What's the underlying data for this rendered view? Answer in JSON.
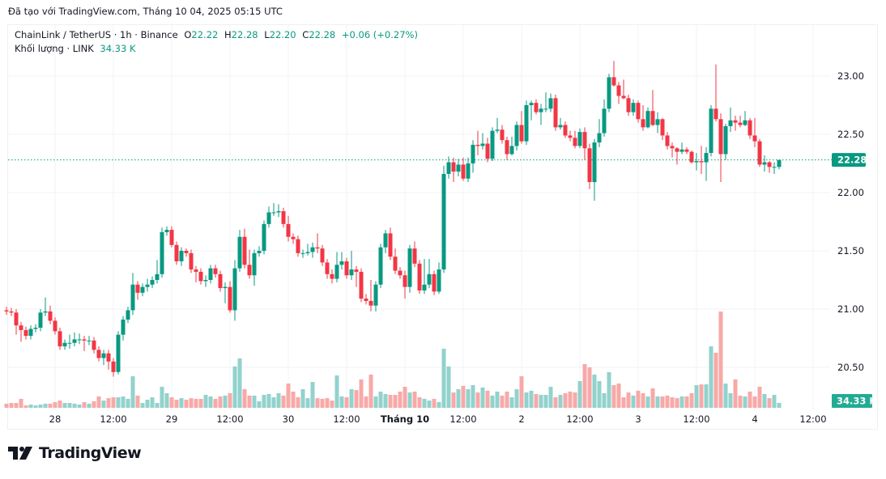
{
  "credit": "Đã tạo với TradingView.com, Tháng 10 04, 2025 05:15 UTC",
  "legend": {
    "symbol": "ChainLink / TetherUS · 1h · Binance",
    "o_label": "O",
    "o": "22.22",
    "h_label": "H",
    "h": "22.28",
    "l_label": "L",
    "l": "22.20",
    "c_label": "C",
    "c": "22.28",
    "change": "+0.06 (+0.27%)",
    "volume_label": "Khối lượng · LINK",
    "volume_value": "34.33 K"
  },
  "logo": {
    "text": "TradingView"
  },
  "colors": {
    "up": "#089981",
    "down": "#f23645",
    "vol_up": "#92d2cc",
    "vol_down": "#f7a9a7",
    "grid": "#f0f3fa",
    "last_price": "#089981",
    "volume_badge": "#22ab94"
  },
  "chart_data": {
    "type": "candlestick",
    "interval": "1h",
    "last_bar_time": "2025-10-04 05:00",
    "ylim": [
      20.35,
      23.25
    ],
    "y_ticks": [
      "23.00",
      "22.50",
      "22.00",
      "21.50",
      "21.00",
      "20.50"
    ],
    "x_ticks": [
      {
        "label": "28",
        "time": "2025-09-28 00:00",
        "bold": false
      },
      {
        "label": "12:00",
        "time": "2025-09-28 12:00",
        "bold": false
      },
      {
        "label": "29",
        "time": "2025-09-29 00:00",
        "bold": false
      },
      {
        "label": "12:00",
        "time": "2025-09-29 12:00",
        "bold": false
      },
      {
        "label": "30",
        "time": "2025-09-30 00:00",
        "bold": false
      },
      {
        "label": "12:00",
        "time": "2025-09-30 12:00",
        "bold": false
      },
      {
        "label": "Tháng 10",
        "time": "2025-10-01 00:00",
        "bold": true
      },
      {
        "label": "12:00",
        "time": "2025-10-01 12:00",
        "bold": false
      },
      {
        "label": "2",
        "time": "2025-10-02 00:00",
        "bold": false
      },
      {
        "label": "12:00",
        "time": "2025-10-02 12:00",
        "bold": false
      },
      {
        "label": "3",
        "time": "2025-10-03 00:00",
        "bold": false
      },
      {
        "label": "12:00",
        "time": "2025-10-03 12:00",
        "bold": false
      },
      {
        "label": "4",
        "time": "2025-10-04 00:00",
        "bold": false
      },
      {
        "label": "12:00",
        "time": "2025-10-04 12:00",
        "bold": false
      }
    ],
    "last_price": "22.28",
    "last_volume": "34.33 K",
    "grid": true,
    "open": [
      20.99,
      20.98,
      20.97,
      20.86,
      20.82,
      20.77,
      20.83,
      20.84,
      20.97,
      20.98,
      20.9,
      20.81,
      20.68,
      20.71,
      20.71,
      20.74,
      20.74,
      20.73,
      20.73,
      20.65,
      20.58,
      20.62,
      20.55,
      20.46,
      20.78,
      20.91,
      20.99,
      21.21,
      21.14,
      21.19,
      21.21,
      21.25,
      21.3,
      21.66,
      21.68,
      21.55,
      21.41,
      21.5,
      21.48,
      21.34,
      21.32,
      21.24,
      21.25,
      21.35,
      21.3,
      21.18,
      21.19,
      20.99,
      21.35,
      21.62,
      21.38,
      21.29,
      21.48,
      21.5,
      21.73,
      21.83,
      21.83,
      21.84,
      21.73,
      21.62,
      21.6,
      21.48,
      21.48,
      21.49,
      21.53,
      21.52,
      21.4,
      21.3,
      21.26,
      21.38,
      21.41,
      21.29,
      21.34,
      21.32,
      21.09,
      21.07,
      21.03,
      21.21,
      21.53,
      21.65,
      21.45,
      21.33,
      21.29,
      21.19,
      21.52,
      21.39,
      21.16,
      21.21,
      21.3,
      21.15,
      21.34,
      22.16,
      22.26,
      22.18,
      22.24,
      22.12,
      22.25,
      22.41,
      22.4,
      22.42,
      22.29,
      22.53,
      22.54,
      22.45,
      22.33,
      22.4,
      22.58,
      22.44,
      22.75,
      22.77,
      22.69,
      22.72,
      22.72,
      22.81,
      22.56,
      22.58,
      22.49,
      22.47,
      22.4,
      22.52,
      22.38,
      22.09,
      22.43,
      22.51,
      22.72,
      22.99,
      22.92,
      22.83,
      22.81,
      22.69,
      22.77,
      22.63,
      22.56,
      22.7,
      22.58,
      22.63,
      22.49,
      22.4,
      22.38,
      22.35,
      22.37,
      22.35,
      22.26,
      22.27,
      22.26,
      22.34,
      22.72,
      22.63,
      22.33,
      22.57,
      22.62,
      22.6,
      22.58,
      22.62,
      22.49,
      22.44,
      22.24,
      22.26,
      22.22,
      22.22
    ],
    "high": [
      21.02,
      21.01,
      21.0,
      20.89,
      20.85,
      20.86,
      20.87,
      21.0,
      21.1,
      21.03,
      20.93,
      20.84,
      20.74,
      20.78,
      20.8,
      20.79,
      20.77,
      20.77,
      20.76,
      20.68,
      20.65,
      20.65,
      20.58,
      20.81,
      20.94,
      21.02,
      21.31,
      21.24,
      21.22,
      21.26,
      21.28,
      21.42,
      21.7,
      21.71,
      21.71,
      21.58,
      21.53,
      21.52,
      21.51,
      21.37,
      21.35,
      21.29,
      21.38,
      21.38,
      21.33,
      21.23,
      21.24,
      21.42,
      21.68,
      21.69,
      21.51,
      21.51,
      21.54,
      21.76,
      21.88,
      21.91,
      21.9,
      21.87,
      21.8,
      21.65,
      21.63,
      21.51,
      21.56,
      21.57,
      21.65,
      21.55,
      21.43,
      21.34,
      21.49,
      21.49,
      21.44,
      21.5,
      21.37,
      21.35,
      21.13,
      21.25,
      21.24,
      21.56,
      21.68,
      21.7,
      21.52,
      21.36,
      21.33,
      21.55,
      21.58,
      21.42,
      21.43,
      21.43,
      21.33,
      21.4,
      22.23,
      22.31,
      22.3,
      22.29,
      22.3,
      22.3,
      22.45,
      22.53,
      22.51,
      22.47,
      22.56,
      22.64,
      22.58,
      22.48,
      22.48,
      22.61,
      22.7,
      22.79,
      22.79,
      22.8,
      22.76,
      22.86,
      22.85,
      22.84,
      22.64,
      22.61,
      22.53,
      22.53,
      22.55,
      22.56,
      22.42,
      22.46,
      22.63,
      22.8,
      23.02,
      23.13,
      22.95,
      22.97,
      22.84,
      22.8,
      22.79,
      22.75,
      22.73,
      22.88,
      22.69,
      22.64,
      22.52,
      22.43,
      22.39,
      22.43,
      22.39,
      22.36,
      22.34,
      22.4,
      22.39,
      22.75,
      23.1,
      22.68,
      22.59,
      22.73,
      22.66,
      22.66,
      22.7,
      22.64,
      22.64,
      22.46,
      22.32,
      22.27,
      22.26,
      22.28
    ],
    "low": [
      20.95,
      20.94,
      20.78,
      20.72,
      20.74,
      20.74,
      20.8,
      20.81,
      20.94,
      20.87,
      20.78,
      20.65,
      20.65,
      20.66,
      20.68,
      20.7,
      20.64,
      20.69,
      20.62,
      20.55,
      20.52,
      20.48,
      20.42,
      20.44,
      20.73,
      20.88,
      20.95,
      21.08,
      21.11,
      21.15,
      21.18,
      21.22,
      21.27,
      21.63,
      21.53,
      21.38,
      21.37,
      21.45,
      21.31,
      21.23,
      21.21,
      21.19,
      21.22,
      21.27,
      21.15,
      21.05,
      20.97,
      20.9,
      21.32,
      21.35,
      21.26,
      21.2,
      21.45,
      21.47,
      21.7,
      21.8,
      21.79,
      21.7,
      21.58,
      21.56,
      21.45,
      21.44,
      21.46,
      21.44,
      21.48,
      21.37,
      21.26,
      21.22,
      21.23,
      21.34,
      21.26,
      21.25,
      21.19,
      21.06,
      21.04,
      20.98,
      20.98,
      21.18,
      21.48,
      21.42,
      21.3,
      21.26,
      21.09,
      21.14,
      21.36,
      21.13,
      21.13,
      21.18,
      21.12,
      21.13,
      21.31,
      22.12,
      22.09,
      22.14,
      22.1,
      22.09,
      22.17,
      22.32,
      22.37,
      22.26,
      22.27,
      22.51,
      22.42,
      22.28,
      22.32,
      22.36,
      22.42,
      22.41,
      22.62,
      22.67,
      22.58,
      22.69,
      22.69,
      22.53,
      22.54,
      22.47,
      22.44,
      22.38,
      22.38,
      22.28,
      22.03,
      21.93,
      22.39,
      22.48,
      22.69,
      22.91,
      22.76,
      22.8,
      22.66,
      22.66,
      22.6,
      22.53,
      22.55,
      22.57,
      22.51,
      22.45,
      22.37,
      22.3,
      22.24,
      22.33,
      22.33,
      22.25,
      22.19,
      22.16,
      22.1,
      22.31,
      22.61,
      22.09,
      22.28,
      22.52,
      22.53,
      22.56,
      22.57,
      22.46,
      22.39,
      22.22,
      22.18,
      22.17,
      22.16,
      22.2
    ],
    "close": [
      20.98,
      20.97,
      20.86,
      20.82,
      20.77,
      20.83,
      20.84,
      20.97,
      20.98,
      20.9,
      20.81,
      20.68,
      20.71,
      20.71,
      20.74,
      20.74,
      20.73,
      20.73,
      20.65,
      20.58,
      20.62,
      20.55,
      20.46,
      20.78,
      20.91,
      20.99,
      21.21,
      21.14,
      21.19,
      21.21,
      21.25,
      21.3,
      21.66,
      21.68,
      21.55,
      21.41,
      21.5,
      21.48,
      21.34,
      21.32,
      21.24,
      21.25,
      21.35,
      21.3,
      21.18,
      21.19,
      20.99,
      21.35,
      21.62,
      21.38,
      21.29,
      21.48,
      21.5,
      21.73,
      21.83,
      21.83,
      21.84,
      21.73,
      21.62,
      21.6,
      21.48,
      21.48,
      21.49,
      21.53,
      21.52,
      21.4,
      21.3,
      21.26,
      21.38,
      21.41,
      21.29,
      21.34,
      21.32,
      21.09,
      21.07,
      21.03,
      21.21,
      21.53,
      21.65,
      21.45,
      21.33,
      21.29,
      21.19,
      21.52,
      21.39,
      21.16,
      21.21,
      21.3,
      21.15,
      21.34,
      22.16,
      22.26,
      22.18,
      22.24,
      22.12,
      22.25,
      22.41,
      22.4,
      22.42,
      22.29,
      22.53,
      22.54,
      22.45,
      22.33,
      22.4,
      22.58,
      22.44,
      22.75,
      22.77,
      22.69,
      22.72,
      22.72,
      22.81,
      22.56,
      22.58,
      22.49,
      22.47,
      22.4,
      22.52,
      22.38,
      22.09,
      22.43,
      22.51,
      22.72,
      22.99,
      22.92,
      22.83,
      22.81,
      22.69,
      22.77,
      22.63,
      22.56,
      22.7,
      22.58,
      22.63,
      22.49,
      22.4,
      22.38,
      22.35,
      22.37,
      22.35,
      22.26,
      22.27,
      22.26,
      22.34,
      22.72,
      22.63,
      22.33,
      22.57,
      22.62,
      22.6,
      22.58,
      22.62,
      22.49,
      22.44,
      22.24,
      22.26,
      22.22,
      22.22,
      22.28
    ],
    "volume_k": [
      29,
      34,
      34,
      63,
      17,
      23,
      17,
      23,
      29,
      29,
      40,
      51,
      34,
      34,
      29,
      23,
      40,
      29,
      46,
      80,
      51,
      68,
      74,
      74,
      80,
      63,
      222,
      86,
      34,
      57,
      74,
      34,
      148,
      103,
      74,
      57,
      68,
      57,
      68,
      63,
      63,
      91,
      80,
      63,
      80,
      86,
      103,
      291,
      348,
      131,
      86,
      86,
      46,
      91,
      97,
      74,
      103,
      86,
      171,
      114,
      74,
      131,
      68,
      182,
      68,
      63,
      68,
      51,
      228,
      80,
      74,
      131,
      125,
      200,
      80,
      234,
      80,
      114,
      97,
      91,
      91,
      114,
      148,
      108,
      114,
      74,
      63,
      51,
      63,
      40,
      416,
      291,
      108,
      131,
      154,
      131,
      160,
      108,
      143,
      120,
      86,
      114,
      86,
      114,
      74,
      131,
      222,
      108,
      120,
      97,
      91,
      91,
      148,
      74,
      91,
      103,
      114,
      108,
      188,
      308,
      285,
      234,
      188,
      103,
      251,
      160,
      171,
      74,
      108,
      86,
      120,
      103,
      80,
      137,
      80,
      80,
      86,
      74,
      68,
      80,
      80,
      103,
      160,
      165,
      165,
      433,
      388,
      678,
      171,
      103,
      200,
      86,
      80,
      114,
      80,
      148,
      97,
      68,
      91,
      34.33
    ]
  }
}
